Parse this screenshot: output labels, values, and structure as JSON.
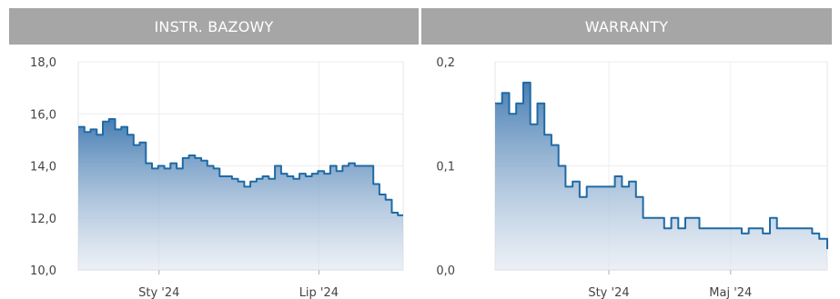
{
  "top_strip": {
    "link_text": ""
  },
  "headers": {
    "left": "INSTR. BAZOWY",
    "right": "WARRANTY"
  },
  "colors": {
    "header_bg": "#a6a6a6",
    "line": "#1f6aa5",
    "area_top": "#3f78b0",
    "area_bottom": "#dfe6f0"
  },
  "chart_data": [
    {
      "type": "area",
      "title": "",
      "xlabel": "",
      "ylabel": "",
      "ylim": [
        10.0,
        18.0
      ],
      "yticks": [
        "18,0",
        "16,0",
        "14,0",
        "12,0",
        "10,0"
      ],
      "ytick_values": [
        18,
        16,
        14,
        12,
        10
      ],
      "xlim": [
        "2023-10-01",
        "2024-10-05"
      ],
      "xticks": [
        {
          "date": "2024-01-01",
          "label": "Sty '24"
        },
        {
          "date": "2024-07-01",
          "label": "Lip '24"
        }
      ],
      "grid": true,
      "series": [
        {
          "x": [
            "2023-10-01",
            "2023-10-08",
            "2023-10-15",
            "2023-10-22",
            "2023-10-29",
            "2023-11-05",
            "2023-11-12",
            "2023-11-19",
            "2023-11-26",
            "2023-12-03",
            "2023-12-10",
            "2023-12-17",
            "2023-12-24",
            "2023-12-31",
            "2024-01-07",
            "2024-01-14",
            "2024-01-21",
            "2024-01-28",
            "2024-02-04",
            "2024-02-11",
            "2024-02-18",
            "2024-02-25",
            "2024-03-03",
            "2024-03-10",
            "2024-03-17",
            "2024-03-24",
            "2024-03-31",
            "2024-04-07",
            "2024-04-14",
            "2024-04-21",
            "2024-04-28",
            "2024-05-05",
            "2024-05-12",
            "2024-05-19",
            "2024-05-26",
            "2024-06-02",
            "2024-06-09",
            "2024-06-16",
            "2024-06-23",
            "2024-06-30",
            "2024-07-07",
            "2024-07-14",
            "2024-07-21",
            "2024-07-28",
            "2024-08-04",
            "2024-08-11",
            "2024-08-18",
            "2024-08-25",
            "2024-09-01",
            "2024-09-08",
            "2024-09-15",
            "2024-09-22",
            "2024-09-29",
            "2024-10-05"
          ],
          "values": [
            15.5,
            15.3,
            15.4,
            15.2,
            15.7,
            15.8,
            15.4,
            15.5,
            15.2,
            14.8,
            14.9,
            14.1,
            13.9,
            14.0,
            13.9,
            14.1,
            13.9,
            14.3,
            14.4,
            14.3,
            14.2,
            14.0,
            13.9,
            13.6,
            13.6,
            13.5,
            13.4,
            13.2,
            13.4,
            13.5,
            13.6,
            13.5,
            14.0,
            13.7,
            13.6,
            13.5,
            13.7,
            13.6,
            13.7,
            13.8,
            13.7,
            14.0,
            13.8,
            14.0,
            14.1,
            14.0,
            14.0,
            14.0,
            13.3,
            12.9,
            12.7,
            12.2,
            12.1,
            12.1
          ]
        }
      ]
    },
    {
      "type": "area",
      "title": "",
      "xlabel": "",
      "ylabel": "",
      "ylim": [
        0.0,
        0.2
      ],
      "yticks": [
        "0,2",
        "0,1",
        "0,0"
      ],
      "ytick_values": [
        0.2,
        0.1,
        0.0
      ],
      "xlim": [
        "2023-09-10",
        "2024-08-05"
      ],
      "xticks": [
        {
          "date": "2024-01-01",
          "label": "Sty '24"
        },
        {
          "date": "2024-05-01",
          "label": "Maj '24"
        }
      ],
      "grid": true,
      "series": [
        {
          "x": [
            "2023-09-10",
            "2023-09-17",
            "2023-09-24",
            "2023-10-01",
            "2023-10-08",
            "2023-10-15",
            "2023-10-22",
            "2023-10-29",
            "2023-11-05",
            "2023-11-12",
            "2023-11-19",
            "2023-11-26",
            "2023-12-03",
            "2023-12-10",
            "2023-12-17",
            "2023-12-24",
            "2023-12-31",
            "2024-01-07",
            "2024-01-14",
            "2024-01-21",
            "2024-01-28",
            "2024-02-04",
            "2024-02-11",
            "2024-02-18",
            "2024-02-25",
            "2024-03-03",
            "2024-03-10",
            "2024-03-17",
            "2024-03-24",
            "2024-03-31",
            "2024-04-07",
            "2024-04-14",
            "2024-04-21",
            "2024-04-28",
            "2024-05-05",
            "2024-05-12",
            "2024-05-19",
            "2024-05-26",
            "2024-06-02",
            "2024-06-09",
            "2024-06-16",
            "2024-06-23",
            "2024-06-30",
            "2024-07-07",
            "2024-07-14",
            "2024-07-21",
            "2024-07-28",
            "2024-08-05"
          ],
          "values": [
            0.16,
            0.17,
            0.15,
            0.16,
            0.18,
            0.14,
            0.16,
            0.13,
            0.12,
            0.1,
            0.08,
            0.085,
            0.07,
            0.08,
            0.08,
            0.08,
            0.08,
            0.09,
            0.08,
            0.085,
            0.07,
            0.05,
            0.05,
            0.05,
            0.04,
            0.05,
            0.04,
            0.05,
            0.05,
            0.04,
            0.04,
            0.04,
            0.04,
            0.04,
            0.04,
            0.035,
            0.04,
            0.04,
            0.035,
            0.05,
            0.04,
            0.04,
            0.04,
            0.04,
            0.04,
            0.035,
            0.03,
            0.02
          ]
        }
      ]
    }
  ]
}
